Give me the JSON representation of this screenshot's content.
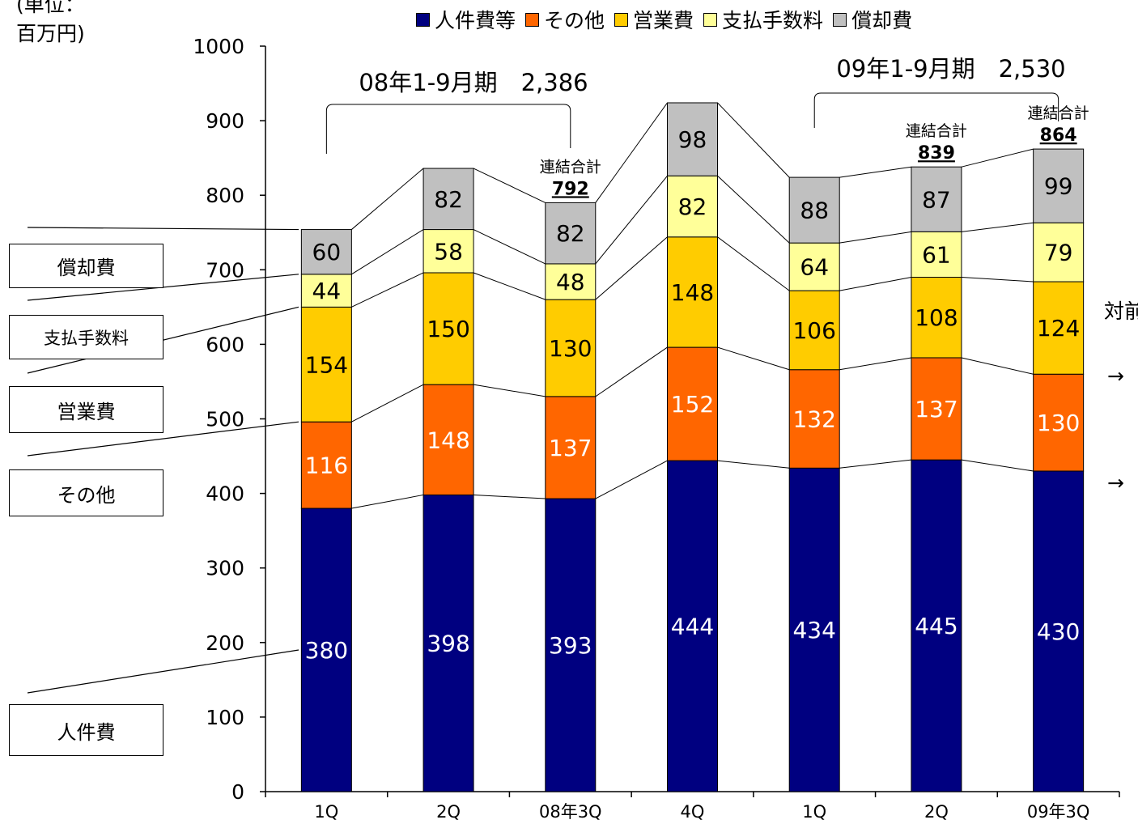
{
  "unit_label": "(単位：\n百万円)",
  "side_labels": [
    "償却費",
    "支払手数料",
    "営業費",
    "その他",
    "人件費"
  ],
  "side_fragments": {
    "right_text": "対前",
    "arrow1": "→",
    "arrow2": "→"
  },
  "annotations": {
    "period1": "08年1-9月期　2,386",
    "period2": "09年1-9月期　2,530",
    "total_label": "連結合計",
    "totals": [
      {
        "category_index": 2,
        "value": "792"
      },
      {
        "category_index": 5,
        "value": "839"
      },
      {
        "category_index": 6,
        "value": "864"
      }
    ]
  },
  "chart_data": {
    "type": "bar",
    "stacked": true,
    "categories": [
      "1Q",
      "2Q",
      "08年3Q",
      "4Q",
      "1Q",
      "2Q",
      "09年3Q"
    ],
    "ylim": [
      0,
      1000
    ],
    "yticks": [
      0,
      100,
      200,
      300,
      400,
      500,
      600,
      700,
      800,
      900,
      1000
    ],
    "series": [
      {
        "name": "人件費等",
        "color": "#000080",
        "label_color": "#ffffff",
        "values": [
          380,
          398,
          393,
          444,
          434,
          445,
          430
        ]
      },
      {
        "name": "その他",
        "color": "#ff6600",
        "label_color": "#ffffff",
        "values": [
          116,
          148,
          137,
          152,
          132,
          137,
          130
        ]
      },
      {
        "name": "営業費",
        "color": "#ffcc00",
        "label_color": "#000000",
        "values": [
          154,
          150,
          130,
          148,
          106,
          108,
          124
        ]
      },
      {
        "name": "支払手数料",
        "color": "#ffff99",
        "label_color": "#000000",
        "values": [
          44,
          58,
          48,
          82,
          64,
          61,
          79
        ]
      },
      {
        "name": "償却費",
        "color": "#c0c0c0",
        "label_color": "#000000",
        "values": [
          60,
          82,
          82,
          98,
          88,
          87,
          99
        ]
      }
    ],
    "legend_position": "top"
  }
}
